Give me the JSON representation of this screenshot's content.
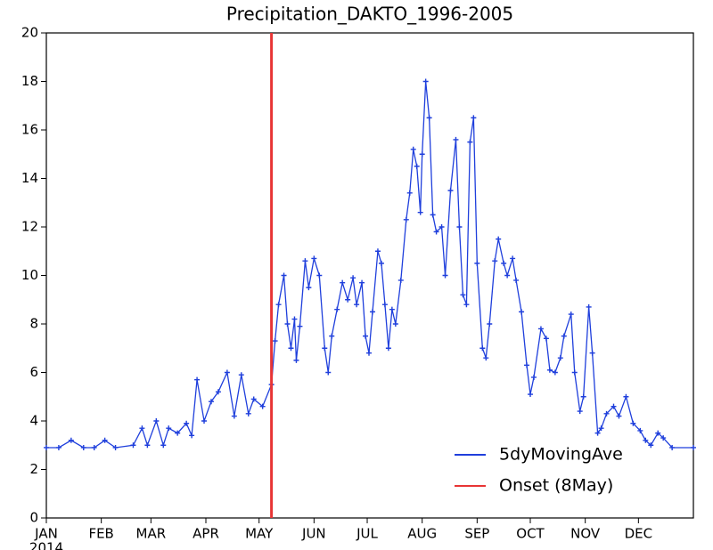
{
  "chart_data": {
    "type": "line",
    "title": "Precipitation_DAKTO_1996-2005",
    "xlim": [
      1,
      366
    ],
    "xticks": [
      {
        "value": 1,
        "label": "JAN"
      },
      {
        "value": 32,
        "label": "FEB"
      },
      {
        "value": 60,
        "label": "MAR"
      },
      {
        "value": 91,
        "label": "APR"
      },
      {
        "value": 121,
        "label": "MAY"
      },
      {
        "value": 152,
        "label": "JUN"
      },
      {
        "value": 182,
        "label": "JUL"
      },
      {
        "value": 213,
        "label": "AUG"
      },
      {
        "value": 244,
        "label": "SEP"
      },
      {
        "value": 274,
        "label": "OCT"
      },
      {
        "value": 305,
        "label": "NOV"
      },
      {
        "value": 335,
        "label": "DEC"
      }
    ],
    "year": "2014",
    "ylim": [
      0,
      20
    ],
    "yticks": [
      0,
      2,
      4,
      6,
      8,
      10,
      12,
      14,
      16,
      18,
      20
    ],
    "legend": "lower right",
    "series": [
      {
        "name": "5dyMovingAve",
        "color": "#1f3fdc",
        "x": [
          1,
          8,
          15,
          22,
          28,
          34,
          40,
          50,
          55,
          58,
          63,
          67,
          70,
          75,
          80,
          83,
          86,
          90,
          94,
          98,
          103,
          107,
          111,
          115,
          118,
          123,
          128,
          130,
          132,
          135,
          137,
          139,
          141,
          142,
          144,
          147,
          149,
          152,
          155,
          158,
          160,
          162,
          165,
          168,
          171,
          174,
          176,
          179,
          181,
          183,
          185,
          188,
          190,
          192,
          194,
          196,
          198,
          201,
          204,
          206,
          208,
          210,
          212,
          213,
          215,
          217,
          219,
          221,
          224,
          226,
          229,
          232,
          234,
          236,
          238,
          240,
          242,
          244,
          247,
          249,
          251,
          254,
          256,
          259,
          261,
          264,
          266,
          269,
          272,
          274,
          276,
          280,
          283,
          285,
          288,
          291,
          293,
          297,
          299,
          302,
          304,
          307,
          309,
          312,
          314,
          317,
          321,
          324,
          328,
          332,
          336,
          339,
          342,
          346,
          349,
          354,
          366
        ],
        "values": [
          2.9,
          2.9,
          3.2,
          2.9,
          2.9,
          3.2,
          2.9,
          3.0,
          3.7,
          3.0,
          4.0,
          3.0,
          3.7,
          3.5,
          3.9,
          3.4,
          5.7,
          4.0,
          4.8,
          5.2,
          6.0,
          4.2,
          5.9,
          4.3,
          4.9,
          4.6,
          5.5,
          7.3,
          8.8,
          10.0,
          8.0,
          7.0,
          8.2,
          6.5,
          7.9,
          10.6,
          9.5,
          10.7,
          10.0,
          7.0,
          6.0,
          7.5,
          8.6,
          9.7,
          9.0,
          9.9,
          8.8,
          9.7,
          7.5,
          6.8,
          8.5,
          11.0,
          10.5,
          8.8,
          7.0,
          8.6,
          8.0,
          9.8,
          12.3,
          13.4,
          15.2,
          14.5,
          12.6,
          15.0,
          18.0,
          16.5,
          12.5,
          11.8,
          12.0,
          10.0,
          13.5,
          15.6,
          12.0,
          9.2,
          8.8,
          15.5,
          16.5,
          10.5,
          7.0,
          6.6,
          8.0,
          10.6,
          11.5,
          10.5,
          10.0,
          10.7,
          9.8,
          8.5,
          6.3,
          5.1,
          5.8,
          7.8,
          7.4,
          6.1,
          6.0,
          6.6,
          7.5,
          8.4,
          6.0,
          4.4,
          5.0,
          8.7,
          6.8,
          3.5,
          3.7,
          4.3,
          4.6,
          4.2,
          5.0,
          3.9,
          3.6,
          3.2,
          3.0,
          3.5,
          3.3,
          2.9,
          2.9
        ]
      }
    ],
    "onset": {
      "name": "Onset (8May)",
      "color": "#e83535",
      "x": 128
    }
  }
}
